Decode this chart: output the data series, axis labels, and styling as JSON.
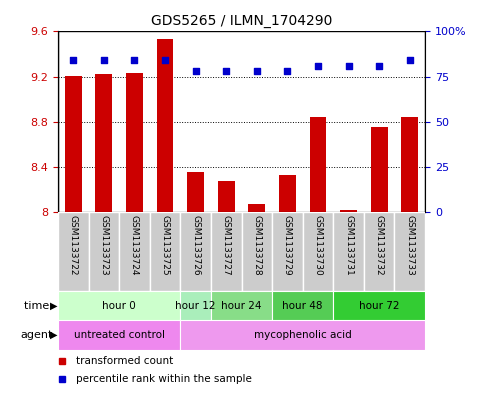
{
  "title": "GDS5265 / ILMN_1704290",
  "samples": [
    "GSM1133722",
    "GSM1133723",
    "GSM1133724",
    "GSM1133725",
    "GSM1133726",
    "GSM1133727",
    "GSM1133728",
    "GSM1133729",
    "GSM1133730",
    "GSM1133731",
    "GSM1133732",
    "GSM1133733"
  ],
  "bar_values": [
    9.21,
    9.22,
    9.23,
    9.53,
    8.36,
    8.28,
    8.07,
    8.33,
    8.84,
    8.02,
    8.75,
    8.84
  ],
  "dot_values": [
    84,
    84,
    84,
    84,
    78,
    78,
    78,
    78,
    81,
    81,
    81,
    84
  ],
  "ylim_left": [
    8.0,
    9.6
  ],
  "ylim_right": [
    0,
    100
  ],
  "yticks_left": [
    8.0,
    8.4,
    8.8,
    9.2,
    9.6
  ],
  "yticks_right": [
    0,
    25,
    50,
    75,
    100
  ],
  "ytick_labels_left": [
    "8",
    "8.4",
    "8.8",
    "9.2",
    "9.6"
  ],
  "ytick_labels_right": [
    "0",
    "25",
    "50",
    "75",
    "100%"
  ],
  "bar_color": "#cc0000",
  "dot_color": "#0000cc",
  "background_color": "#ffffff",
  "time_groups": [
    {
      "label": "hour 0",
      "start": 0,
      "end": 4,
      "color": "#ccffcc"
    },
    {
      "label": "hour 12",
      "start": 4,
      "end": 5,
      "color": "#aaeebb"
    },
    {
      "label": "hour 24",
      "start": 5,
      "end": 7,
      "color": "#88dd88"
    },
    {
      "label": "hour 48",
      "start": 7,
      "end": 9,
      "color": "#55cc55"
    },
    {
      "label": "hour 72",
      "start": 9,
      "end": 12,
      "color": "#33cc33"
    }
  ],
  "agent_groups": [
    {
      "label": "untreated control",
      "start": 0,
      "end": 4,
      "color": "#ee88ee"
    },
    {
      "label": "mycophenolic acid",
      "start": 4,
      "end": 12,
      "color": "#ee99ee"
    }
  ],
  "sample_bg_color": "#cccccc",
  "sample_border_color": "#ffffff",
  "legend_items": [
    {
      "label": "transformed count",
      "color": "#cc0000"
    },
    {
      "label": "percentile rank within the sample",
      "color": "#0000cc"
    }
  ]
}
